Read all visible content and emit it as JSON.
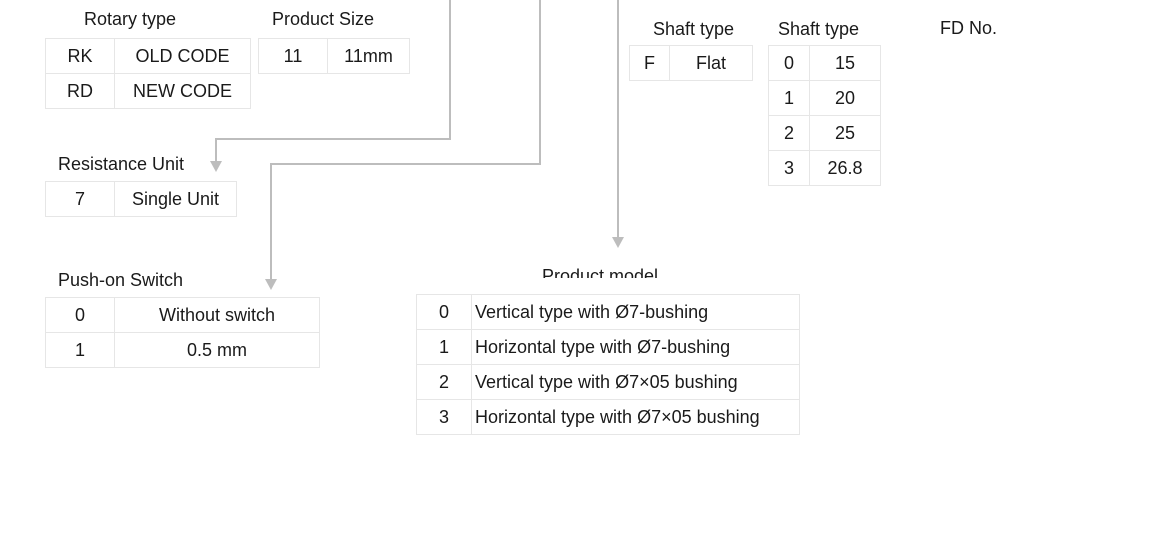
{
  "rotary_type": {
    "title": "Rotary type",
    "rows": [
      [
        "RK",
        "OLD CODE"
      ],
      [
        "RD",
        "NEW CODE"
      ]
    ]
  },
  "product_size": {
    "title": "Product Size",
    "rows": [
      [
        "11",
        "11mm"
      ]
    ]
  },
  "resistance_unit": {
    "title": "Resistance Unit",
    "rows": [
      [
        "7",
        "Single Unit"
      ]
    ]
  },
  "push_on_switch": {
    "title": "Push-on Switch",
    "rows": [
      [
        "0",
        "Without switch"
      ],
      [
        "1",
        "0.5 mm"
      ]
    ]
  },
  "shaft_type_1": {
    "title": "Shaft type",
    "rows": [
      [
        "F",
        "Flat"
      ]
    ]
  },
  "shaft_type_2": {
    "title": "Shaft type",
    "rows": [
      [
        "0",
        "15"
      ],
      [
        "1",
        "20"
      ],
      [
        "2",
        "25"
      ],
      [
        "3",
        "26.8"
      ]
    ]
  },
  "fd_no": {
    "title": "FD No."
  },
  "product_model": {
    "title": "Product model",
    "rows": [
      [
        "0",
        "Vertical type with Ø7-bushing"
      ],
      [
        "1",
        "Horizontal type with Ø7-bushing"
      ],
      [
        "2",
        "Vertical type with Ø7×05 bushing"
      ],
      [
        "3",
        "Horizontal type with Ø7×05 bushing"
      ]
    ]
  },
  "colors": {
    "connector": "#bdbdbd",
    "cell_border": "#e6e6e6",
    "text": "#1a1a1a"
  }
}
